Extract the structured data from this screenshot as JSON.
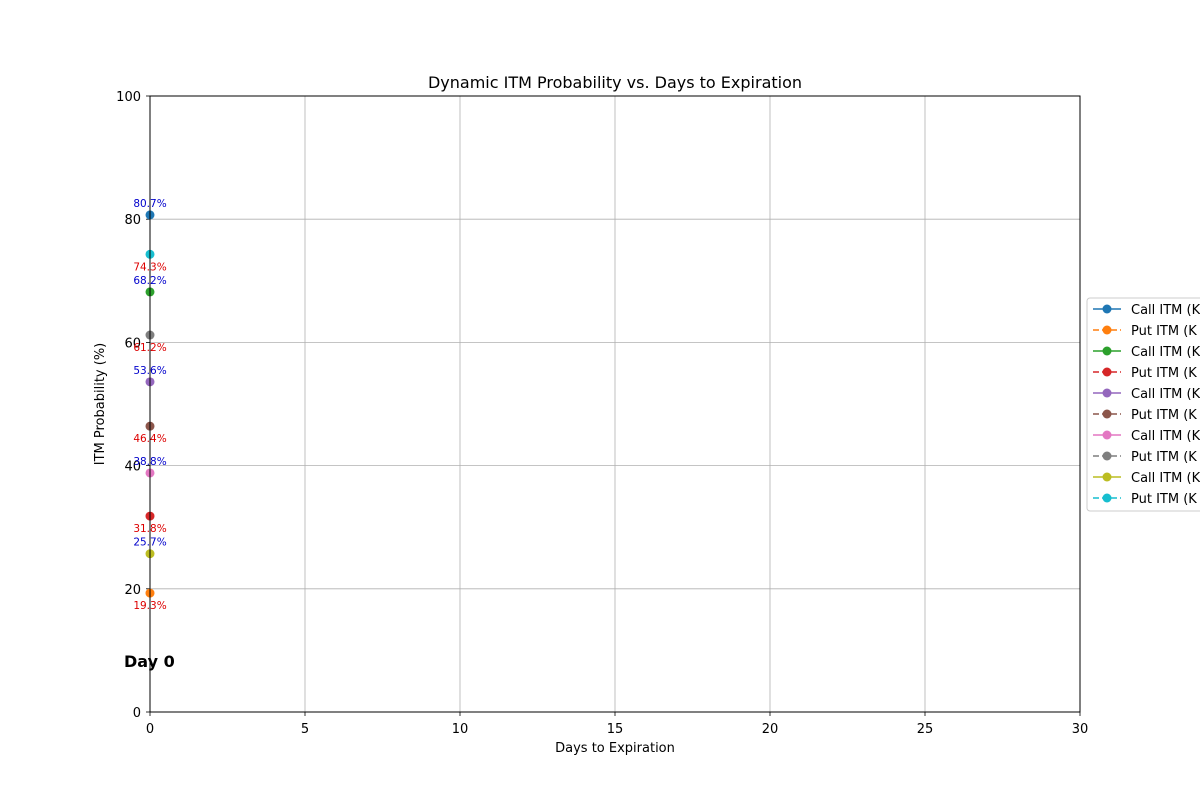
{
  "chart_data": {
    "type": "line",
    "title": "Dynamic ITM Probability vs. Days to Expiration",
    "xlabel": "Days to Expiration",
    "ylabel": "ITM Probability (%)",
    "xlim": [
      0,
      30
    ],
    "ylim": [
      0,
      100
    ],
    "xticks": [
      0,
      5,
      10,
      15,
      20,
      25,
      30
    ],
    "yticks": [
      0,
      20,
      40,
      60,
      80,
      100
    ],
    "grid": true,
    "legend_position": "center-right",
    "annotation": "Day 0",
    "series": [
      {
        "name": "Call ITM (K",
        "color": "#1f77b4",
        "linestyle": "solid",
        "x": [
          0
        ],
        "y": [
          80.7
        ],
        "label": "80.7%",
        "label_color": "#0000cc",
        "label_pos": "above"
      },
      {
        "name": "Put ITM (K",
        "color": "#ff7f0e",
        "linestyle": "dashed",
        "x": [
          0
        ],
        "y": [
          19.3
        ],
        "label": "19.3%",
        "label_color": "#dd0000",
        "label_pos": "below"
      },
      {
        "name": "Call ITM (K",
        "color": "#2ca02c",
        "linestyle": "solid",
        "x": [
          0
        ],
        "y": [
          68.2
        ],
        "label": "68.2%",
        "label_color": "#0000cc",
        "label_pos": "above"
      },
      {
        "name": "Put ITM (K",
        "color": "#d62728",
        "linestyle": "dashed",
        "x": [
          0
        ],
        "y": [
          31.8
        ],
        "label": "31.8%",
        "label_color": "#dd0000",
        "label_pos": "below"
      },
      {
        "name": "Call ITM (K",
        "color": "#9467bd",
        "linestyle": "solid",
        "x": [
          0
        ],
        "y": [
          53.6
        ],
        "label": "53.6%",
        "label_color": "#0000cc",
        "label_pos": "above"
      },
      {
        "name": "Put ITM (K",
        "color": "#8c564b",
        "linestyle": "dashed",
        "x": [
          0
        ],
        "y": [
          46.4
        ],
        "label": "46.4%",
        "label_color": "#dd0000",
        "label_pos": "below"
      },
      {
        "name": "Call ITM (K",
        "color": "#e377c2",
        "linestyle": "solid",
        "x": [
          0
        ],
        "y": [
          38.8
        ],
        "label": "38.8%",
        "label_color": "#0000cc",
        "label_pos": "above"
      },
      {
        "name": "Put ITM (K",
        "color": "#7f7f7f",
        "linestyle": "dashed",
        "x": [
          0
        ],
        "y": [
          61.2
        ],
        "label": "61.2%",
        "label_color": "#dd0000",
        "label_pos": "below"
      },
      {
        "name": "Call ITM (K",
        "color": "#bcbd22",
        "linestyle": "solid",
        "x": [
          0
        ],
        "y": [
          25.7
        ],
        "label": "25.7%",
        "label_color": "#0000cc",
        "label_pos": "above"
      },
      {
        "name": "Put ITM (K",
        "color": "#17becf",
        "linestyle": "dashed",
        "x": [
          0
        ],
        "y": [
          74.3
        ],
        "label": "74.3%",
        "label_color": "#dd0000",
        "label_pos": "below"
      }
    ]
  }
}
